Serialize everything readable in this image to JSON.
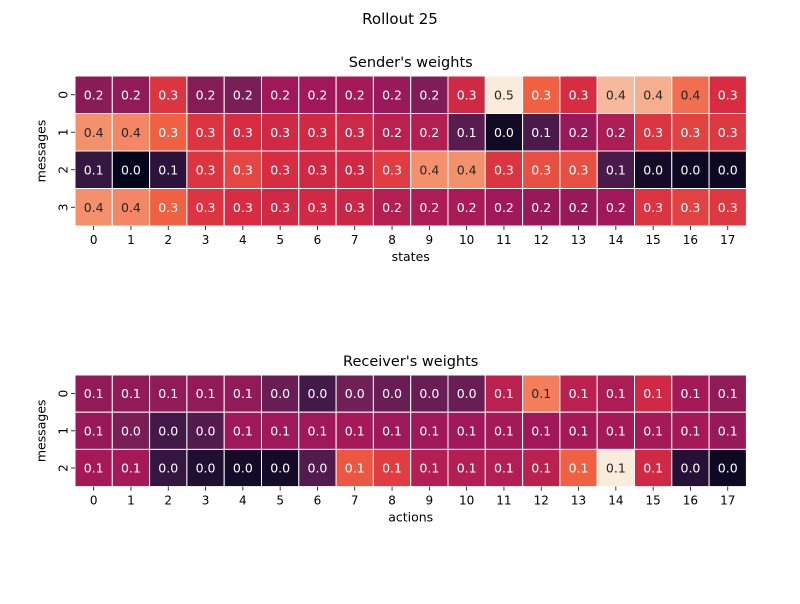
{
  "title": "Rollout 25",
  "chart_data": [
    {
      "type": "heatmap",
      "title": "Sender's weights",
      "xlabel": "states",
      "ylabel": "messages",
      "x_ticks": [
        "0",
        "1",
        "2",
        "3",
        "4",
        "5",
        "6",
        "7",
        "8",
        "9",
        "10",
        "11",
        "12",
        "13",
        "14",
        "15",
        "16",
        "17"
      ],
      "y_ticks": [
        "0",
        "1",
        "2",
        "3"
      ],
      "values": [
        [
          0.2,
          0.2,
          0.3,
          0.2,
          0.2,
          0.2,
          0.2,
          0.2,
          0.2,
          0.2,
          0.3,
          0.5,
          0.3,
          0.3,
          0.4,
          0.4,
          0.4,
          0.3
        ],
        [
          0.4,
          0.4,
          0.3,
          0.3,
          0.3,
          0.3,
          0.3,
          0.3,
          0.2,
          0.2,
          0.1,
          0.0,
          0.1,
          0.2,
          0.2,
          0.3,
          0.3,
          0.3
        ],
        [
          0.1,
          0.0,
          0.1,
          0.3,
          0.3,
          0.3,
          0.3,
          0.3,
          0.3,
          0.4,
          0.4,
          0.3,
          0.3,
          0.3,
          0.1,
          0.0,
          0.0,
          0.0
        ],
        [
          0.4,
          0.4,
          0.3,
          0.3,
          0.3,
          0.3,
          0.3,
          0.3,
          0.2,
          0.2,
          0.2,
          0.2,
          0.2,
          0.2,
          0.2,
          0.3,
          0.3,
          0.3
        ]
      ],
      "shade": [
        [
          0.38,
          0.4,
          0.62,
          0.36,
          0.33,
          0.45,
          0.45,
          0.46,
          0.43,
          0.35,
          0.58,
          1.0,
          0.72,
          0.6,
          0.9,
          0.88,
          0.75,
          0.6
        ],
        [
          0.82,
          0.8,
          0.72,
          0.62,
          0.6,
          0.58,
          0.58,
          0.57,
          0.52,
          0.5,
          0.24,
          0.04,
          0.2,
          0.42,
          0.48,
          0.62,
          0.65,
          0.63
        ],
        [
          0.14,
          0.0,
          0.12,
          0.62,
          0.66,
          0.6,
          0.58,
          0.58,
          0.64,
          0.82,
          0.82,
          0.62,
          0.68,
          0.68,
          0.2,
          0.05,
          0.03,
          0.03
        ],
        [
          0.82,
          0.8,
          0.72,
          0.62,
          0.6,
          0.58,
          0.58,
          0.56,
          0.5,
          0.48,
          0.47,
          0.45,
          0.42,
          0.42,
          0.45,
          0.62,
          0.65,
          0.63
        ]
      ]
    },
    {
      "type": "heatmap",
      "title": "Receiver's weights",
      "xlabel": "actions",
      "ylabel": "messages",
      "x_ticks": [
        "0",
        "1",
        "2",
        "3",
        "4",
        "5",
        "6",
        "7",
        "8",
        "9",
        "10",
        "11",
        "12",
        "13",
        "14",
        "15",
        "16",
        "17"
      ],
      "y_ticks": [
        "0",
        "1",
        "2"
      ],
      "values": [
        [
          0.1,
          0.1,
          0.1,
          0.1,
          0.1,
          0.0,
          0.0,
          0.0,
          0.0,
          0.0,
          0.0,
          0.1,
          0.1,
          0.1,
          0.1,
          0.1,
          0.1,
          0.1
        ],
        [
          0.1,
          0.0,
          0.0,
          0.0,
          0.1,
          0.1,
          0.1,
          0.1,
          0.1,
          0.1,
          0.1,
          0.1,
          0.1,
          0.1,
          0.1,
          0.1,
          0.1,
          0.1
        ],
        [
          0.1,
          0.1,
          0.0,
          0.0,
          0.0,
          0.0,
          0.0,
          0.1,
          0.1,
          0.1,
          0.1,
          0.1,
          0.1,
          0.1,
          0.1,
          0.1,
          0.0,
          0.0
        ]
      ],
      "shade": [
        [
          0.4,
          0.4,
          0.4,
          0.4,
          0.4,
          0.28,
          0.18,
          0.3,
          0.28,
          0.28,
          0.28,
          0.52,
          0.78,
          0.52,
          0.48,
          0.58,
          0.46,
          0.4
        ],
        [
          0.42,
          0.33,
          0.18,
          0.22,
          0.44,
          0.44,
          0.44,
          0.46,
          0.44,
          0.44,
          0.45,
          0.46,
          0.45,
          0.46,
          0.46,
          0.46,
          0.46,
          0.42
        ],
        [
          0.46,
          0.46,
          0.14,
          0.08,
          0.05,
          0.05,
          0.22,
          0.7,
          0.64,
          0.5,
          0.5,
          0.5,
          0.52,
          0.72,
          1.0,
          0.58,
          0.1,
          0.03
        ]
      ]
    }
  ]
}
